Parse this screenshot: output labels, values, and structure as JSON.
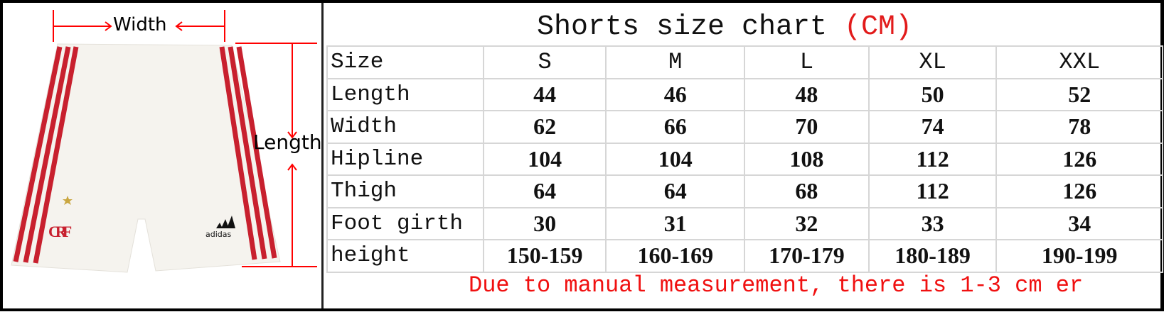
{
  "left": {
    "width_label": "Width",
    "length_label": "Length",
    "brand_text": "adidas",
    "crest_text": "CRF"
  },
  "title": {
    "text": "Shorts size chart",
    "unit": "(CM)"
  },
  "table": {
    "header": [
      "Size",
      "S",
      "M",
      "L",
      "XL",
      "XXL"
    ],
    "rows": [
      {
        "label": "Length",
        "values": [
          "44",
          "46",
          "48",
          "50",
          "52"
        ]
      },
      {
        "label": "Width",
        "values": [
          "62",
          "66",
          "70",
          "74",
          "78"
        ]
      },
      {
        "label": "Hipline",
        "values": [
          "104",
          "104",
          "108",
          "112",
          "126"
        ]
      },
      {
        "label": "Thigh",
        "values": [
          "64",
          "64",
          "68",
          "112",
          "126"
        ]
      },
      {
        "label": "Foot girth",
        "values": [
          "30",
          "31",
          "32",
          "33",
          "34"
        ]
      },
      {
        "label": "height",
        "values": [
          "150-159",
          "160-169",
          "170-179",
          "180-189",
          "190-199"
        ]
      }
    ]
  },
  "note": "Due to manual measurement, there is 1-3 cm er",
  "colors": {
    "accent": "#e21b1b",
    "stripe": "#c8202e",
    "grid": "#d6d6d6"
  }
}
